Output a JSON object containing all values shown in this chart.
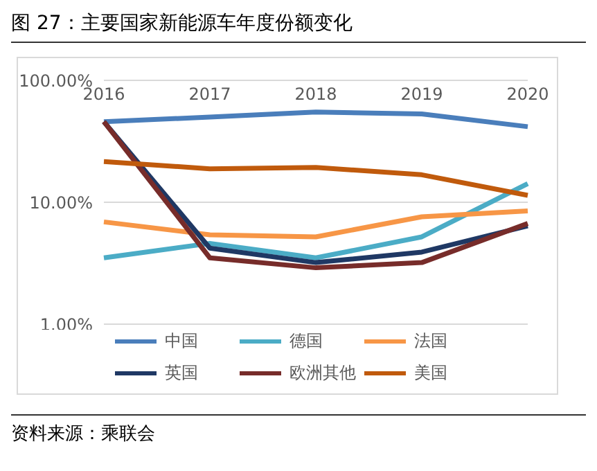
{
  "chart_data": {
    "type": "line",
    "title": "图 27：主要国家新能源车年度份额变化",
    "categories": [
      "2016",
      "2017",
      "2018",
      "2019",
      "2020"
    ],
    "series": [
      {
        "name": "中国",
        "color": "#4a7ebb",
        "values": [
          45.8,
          50,
          55,
          53,
          41.7
        ]
      },
      {
        "name": "德国",
        "color": "#4bacc6",
        "values": [
          3.5,
          4.6,
          3.5,
          5.2,
          14.2
        ]
      },
      {
        "name": "法国",
        "color": "#f79646",
        "values": [
          6.9,
          5.4,
          5.2,
          7.6,
          8.5
        ]
      },
      {
        "name": "英国",
        "color": "#1f3864",
        "values": [
          45.8,
          4.2,
          3.2,
          3.9,
          6.4
        ]
      },
      {
        "name": "欧洲其他",
        "color": "#772c2a",
        "values": [
          45.8,
          3.5,
          2.9,
          3.2,
          6.7
        ]
      },
      {
        "name": "美国",
        "color": "#c05a0c",
        "values": [
          21.6,
          18.8,
          19.3,
          16.8,
          11.4
        ]
      }
    ],
    "log": "y",
    "ylim": [
      1,
      100
    ],
    "yticks": [
      {
        "value": 1,
        "label": "1.00%"
      },
      {
        "value": 10,
        "label": "10.00%"
      },
      {
        "value": 100,
        "label": "100.00%"
      }
    ],
    "grid": "y",
    "legend": "bottom",
    "marker": "none",
    "line_style": "solid",
    "annotations": [
      "资料来源：乘联会"
    ]
  }
}
